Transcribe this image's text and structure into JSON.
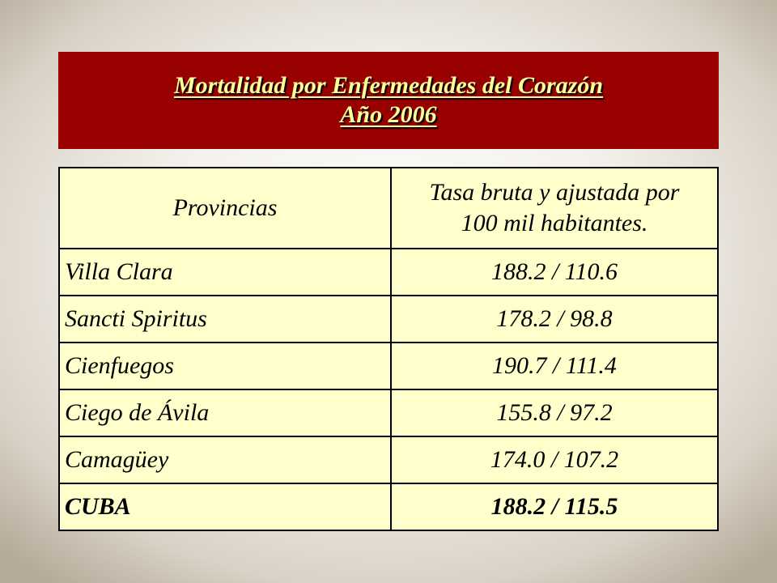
{
  "slide": {
    "title_line1": "Mortalidad por Enfermedades del Corazón",
    "title_line2": "Año 2006"
  },
  "table": {
    "headers": {
      "provinces": "Provincias",
      "rate_line1": "Tasa bruta y ajustada por",
      "rate_line2": "100 mil habitantes."
    },
    "rows": [
      {
        "province": "Villa Clara",
        "rate": "188.2 /  110.6"
      },
      {
        "province": "Sancti Spiritus",
        "rate": "178.2 / 98.8"
      },
      {
        "province": "Cienfuegos",
        "rate": "190.7 / 111.4"
      },
      {
        "province": "Ciego de Ávila",
        "rate": "155.8 / 97.2"
      },
      {
        "province": "Camagüey",
        "rate": "174.0 / 107.2"
      },
      {
        "province": "CUBA",
        "rate": "188.2 / 115.5"
      }
    ]
  },
  "colors": {
    "title_bg": "#990000",
    "title_text": "#ffff99",
    "table_bg": "#ffffcc",
    "border": "#000000"
  }
}
